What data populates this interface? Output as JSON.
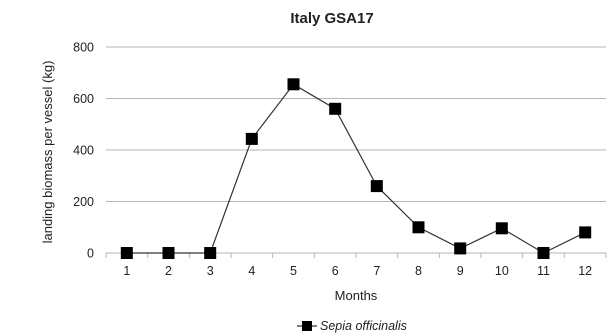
{
  "chart_data": {
    "type": "line",
    "title": "Italy GSA17",
    "xlabel": "Months",
    "ylabel": "landing biomass per vessel (kg)",
    "x": [
      "1",
      "2",
      "3",
      "4",
      "5",
      "6",
      "7",
      "8",
      "9",
      "10",
      "11",
      "12"
    ],
    "series": [
      {
        "name": "Sepia officinalis",
        "values": [
          0,
          0,
          0,
          443,
          655,
          560,
          260,
          100,
          18,
          96,
          0,
          80
        ],
        "color": "#000000",
        "marker": "square"
      }
    ],
    "ylim": [
      0,
      800
    ],
    "yticks": [
      0,
      200,
      400,
      600,
      800
    ],
    "grid": "horizontal",
    "legend_position": "bottom-center"
  }
}
